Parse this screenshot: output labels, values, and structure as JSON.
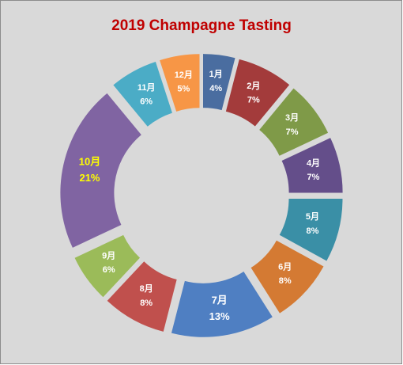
{
  "chart_data": {
    "type": "donut",
    "title": "2019 Champagne  Tasting",
    "categories": [
      "1月",
      "2月",
      "3月",
      "4月",
      "5月",
      "6月",
      "7月",
      "8月",
      "9月",
      "10月",
      "11月",
      "12月"
    ],
    "values": [
      4,
      7,
      7,
      7,
      8,
      8,
      13,
      8,
      6,
      21,
      6,
      5
    ],
    "value_labels": [
      "4%",
      "7%",
      "7%",
      "7%",
      "8%",
      "8%",
      "13%",
      "8%",
      "6%",
      "21%",
      "6%",
      "5%"
    ],
    "colors": [
      "#4a6da0",
      "#a33b3b",
      "#7f9a48",
      "#644e8a",
      "#3a8fa6",
      "#d47a33",
      "#4f7fc2",
      "#c0504d",
      "#9bbb59",
      "#8064a2",
      "#4bacc6",
      "#f79646"
    ],
    "label_colors": [
      "#ffffff",
      "#ffffff",
      "#ffffff",
      "#ffffff",
      "#ffffff",
      "#ffffff",
      "#ffffff",
      "#ffffff",
      "#ffffff",
      "#ffff00",
      "#ffffff",
      "#ffffff"
    ]
  }
}
